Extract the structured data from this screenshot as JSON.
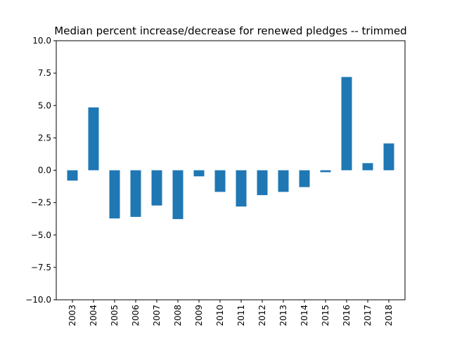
{
  "chart_data": {
    "type": "bar",
    "title": "Median percent increase/decrease for renewed pledges -- trimmed",
    "xlabel": "",
    "ylabel": "",
    "categories": [
      "2003",
      "2004",
      "2005",
      "2006",
      "2007",
      "2008",
      "2009",
      "2010",
      "2011",
      "2012",
      "2013",
      "2014",
      "2015",
      "2016",
      "2017",
      "2018"
    ],
    "values": [
      -0.8,
      4.85,
      -3.72,
      -3.6,
      -2.72,
      -3.77,
      -0.47,
      -1.67,
      -2.8,
      -1.92,
      -1.67,
      -1.3,
      -0.15,
      7.2,
      0.55,
      2.07
    ],
    "ylim": [
      -10,
      10
    ],
    "yticks": [
      "−10.0",
      "−7.5",
      "−5.0",
      "−2.5",
      "0.0",
      "2.5",
      "5.0",
      "7.5",
      "10.0"
    ],
    "ytick_values": [
      -10,
      -7.5,
      -5,
      -2.5,
      0,
      2.5,
      5,
      7.5,
      10
    ],
    "bar_color": "#1f77b4",
    "grid": false,
    "legend": "none"
  }
}
